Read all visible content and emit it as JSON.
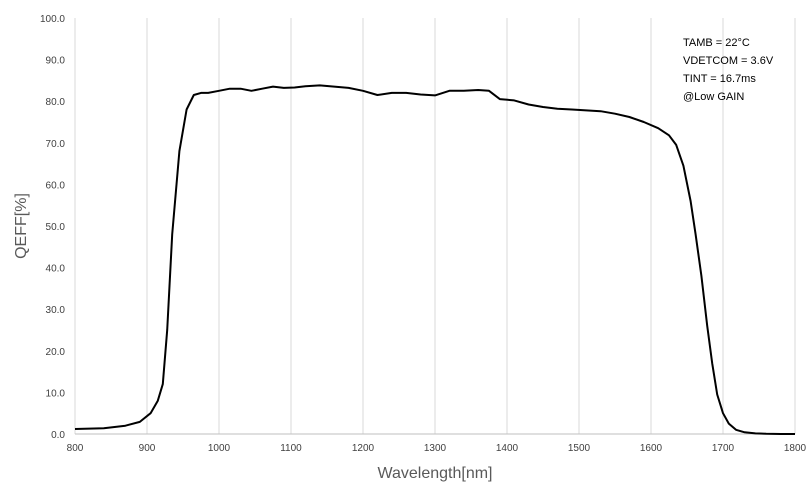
{
  "chart_data": {
    "type": "line",
    "xlabel": "Wavelength[nm]",
    "ylabel": "QEFF[%]",
    "xlim": [
      800,
      1800
    ],
    "ylim": [
      0,
      100
    ],
    "x_ticks": [
      "800",
      "900",
      "1000",
      "1100",
      "1200",
      "1300",
      "1400",
      "1500",
      "1600",
      "1700",
      "1800"
    ],
    "y_ticks": [
      "0.0",
      "10.0",
      "20.0",
      "30.0",
      "40.0",
      "50.0",
      "60.0",
      "70.0",
      "80.0",
      "90.0",
      "100.0"
    ],
    "grid": "vertical",
    "annotations": [
      "TAMB = 22°C",
      "VDETCOM = 3.6V",
      "TINT = 16.7ms",
      "@Low GAIN"
    ],
    "annotation_position": "top-right",
    "series": [
      {
        "color": "#000000",
        "x": [
          800,
          840,
          870,
          890,
          905,
          915,
          922,
          928,
          935,
          945,
          955,
          965,
          975,
          985,
          1000,
          1015,
          1030,
          1045,
          1060,
          1075,
          1090,
          1105,
          1120,
          1140,
          1160,
          1180,
          1200,
          1220,
          1240,
          1260,
          1280,
          1300,
          1320,
          1340,
          1360,
          1375,
          1390,
          1410,
          1430,
          1450,
          1470,
          1490,
          1510,
          1530,
          1550,
          1570,
          1590,
          1610,
          1625,
          1635,
          1645,
          1655,
          1662,
          1670,
          1678,
          1685,
          1692,
          1700,
          1708,
          1718,
          1730,
          1745,
          1760,
          1780,
          1800
        ],
        "y": [
          1.2,
          1.4,
          2.0,
          2.9,
          5.0,
          8.0,
          12.0,
          25.0,
          48.0,
          68.0,
          78.0,
          81.5,
          82.0,
          82.0,
          82.5,
          83.0,
          83.0,
          82.5,
          83.0,
          83.5,
          83.2,
          83.3,
          83.6,
          83.8,
          83.5,
          83.2,
          82.5,
          81.5,
          82.0,
          82.0,
          81.6,
          81.4,
          82.5,
          82.5,
          82.7,
          82.5,
          80.5,
          80.2,
          79.2,
          78.6,
          78.2,
          78.0,
          77.8,
          77.6,
          77.0,
          76.2,
          75.0,
          73.5,
          71.8,
          69.5,
          64.5,
          56.0,
          48.0,
          38.0,
          26.0,
          17.0,
          9.5,
          5.0,
          2.5,
          1.0,
          0.4,
          0.15,
          0.05,
          0.0,
          0.0
        ]
      }
    ]
  }
}
